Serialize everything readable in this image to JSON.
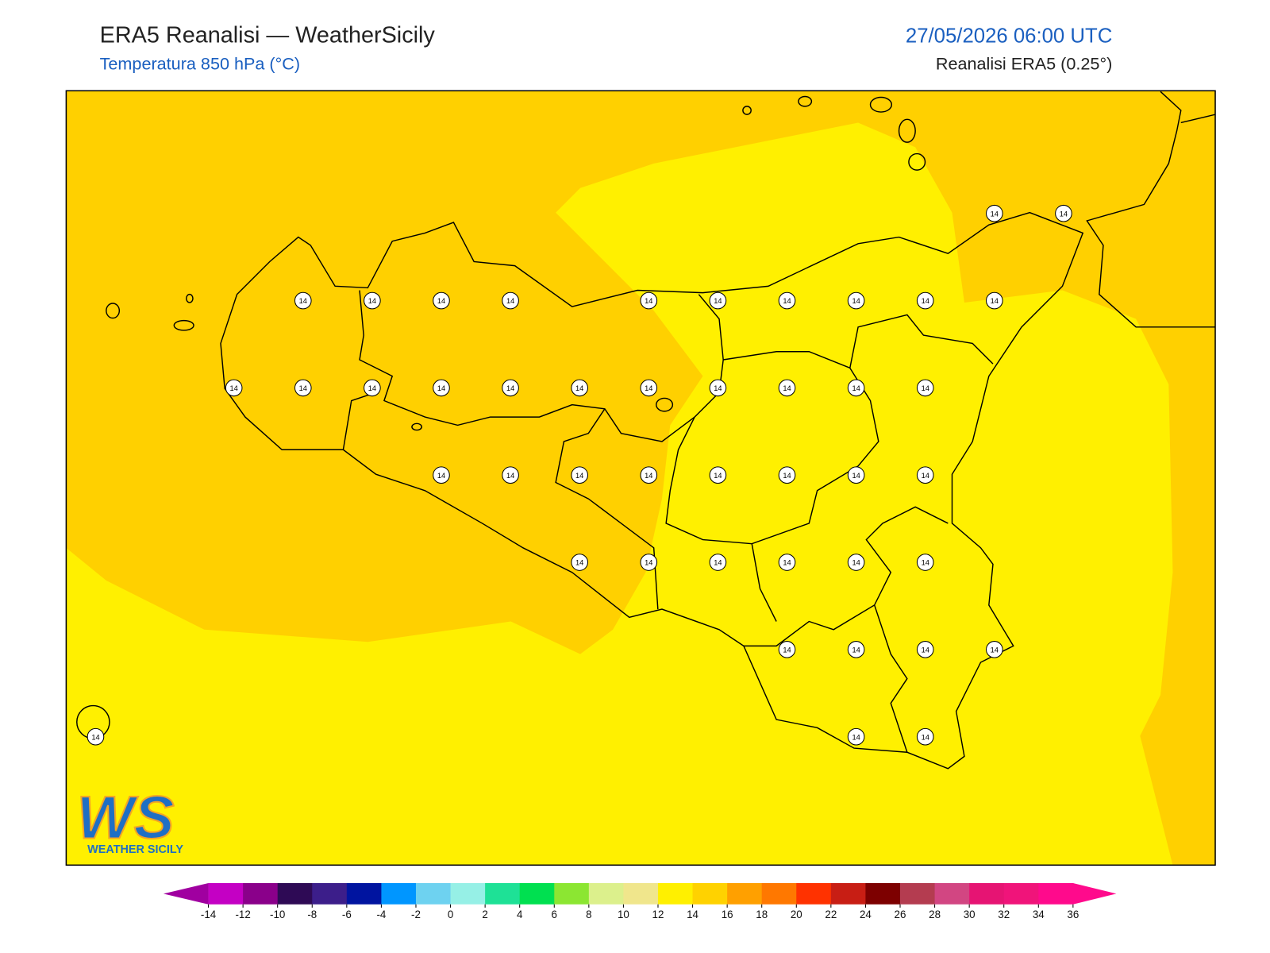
{
  "header": {
    "title": "ERA5 Reanalisi — WeatherSicily",
    "subtitle": "Temperatura 850 hPa (°C)",
    "datetime": "27/05/2026 06:00 UTC",
    "source": "Reanalisi ERA5 (0.25°)"
  },
  "stations": [
    14,
    14,
    14,
    14,
    14,
    14,
    14,
    14,
    14,
    14,
    14,
    14,
    14,
    14,
    14,
    14,
    14,
    14,
    14,
    14,
    14,
    14,
    14,
    14,
    14,
    14,
    14,
    14,
    14,
    14,
    14,
    14,
    14,
    14,
    14,
    14,
    14,
    14,
    14,
    14,
    14,
    14,
    14,
    14
  ],
  "colorbar": {
    "ticks": [
      -14,
      -12,
      -10,
      -8,
      -6,
      -4,
      -2,
      0,
      2,
      4,
      6,
      8,
      10,
      12,
      14,
      16,
      18,
      20,
      22,
      24,
      26,
      28,
      30,
      32,
      34,
      36
    ],
    "colors": [
      "#c400c4",
      "#8a008a",
      "#2e0a55",
      "#3c1e8a",
      "#0014a0",
      "#0096ff",
      "#6ed2f0",
      "#96f0e6",
      "#1ee196",
      "#00e050",
      "#8ce632",
      "#dcf08c",
      "#f0e68c",
      "#fff000",
      "#ffd200",
      "#ffa000",
      "#ff7800",
      "#ff3200",
      "#c81e14",
      "#7d0000",
      "#b43c50",
      "#d24682",
      "#e61473",
      "#f0147a",
      "#ff0a8c"
    ],
    "extend_colors": [
      "#a000a0",
      "#ff0a8c"
    ]
  },
  "logo": {
    "letters": "WS",
    "text": "WEATHER SICILY"
  }
}
